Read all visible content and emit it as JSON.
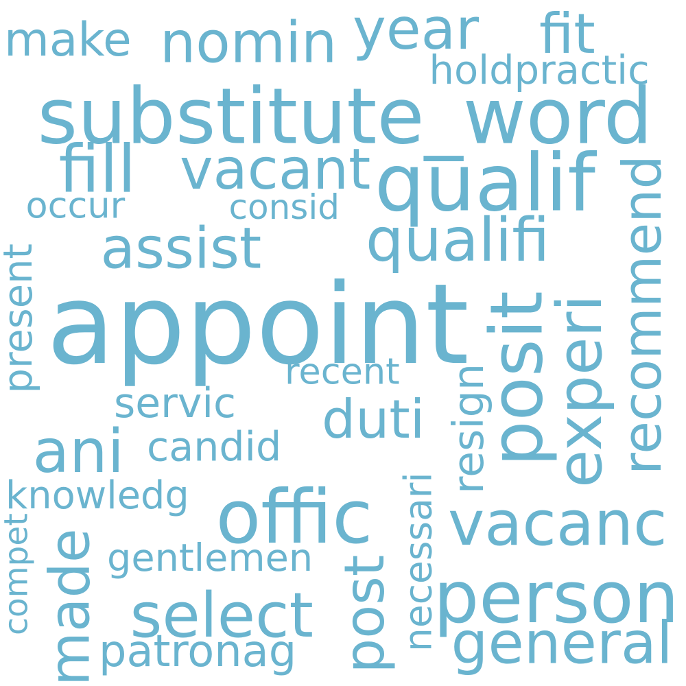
{
  "colors": {
    "word": "#6ab4cf",
    "background": "#ffffff"
  },
  "words": [
    "appoint",
    "substitute_word",
    "offic",
    "person",
    "qualif",
    "recommend",
    "fill",
    "vacant",
    "select",
    "vacanc",
    "made",
    "nomin",
    "qualifi",
    "duti",
    "posit",
    "experi",
    "post",
    "general",
    "assist",
    "year",
    "fit",
    "ani",
    "make",
    "present",
    "gentlemen",
    "patronag",
    "servic",
    "candid",
    "knowledg",
    "necessari",
    "resign",
    "recent",
    "holdpractic",
    "consid",
    "occur",
    "compet"
  ]
}
